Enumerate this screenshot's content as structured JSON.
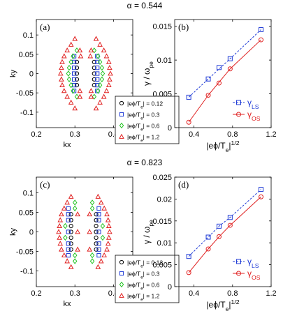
{
  "chart_data": [
    {
      "type": "scatter",
      "panel": "(a)",
      "row_title": "α = 0.544",
      "xlabel": "kx",
      "ylabel": "ky",
      "xlim": [
        0.2,
        0.45
      ],
      "ylim": [
        -0.14,
        0.14
      ],
      "xticks": [
        "0.2",
        "0.3",
        "0.4"
      ],
      "yticks": [
        "0.1",
        "0.05",
        "0",
        "-0.05",
        "-0.1"
      ],
      "grid": false,
      "legend_position": "bottom-right",
      "series": [
        {
          "name": "|eϕ/T_e| = 0.12",
          "marker": "circle",
          "color": "#000000",
          "points": [
            [
              0.305,
              0.03
            ],
            [
              0.305,
              0.015
            ],
            [
              0.305,
              0
            ],
            [
              0.305,
              -0.015
            ],
            [
              0.305,
              -0.03
            ],
            [
              0.35,
              0.03
            ],
            [
              0.35,
              0.015
            ],
            [
              0.35,
              0
            ],
            [
              0.35,
              -0.015
            ],
            [
              0.35,
              -0.03
            ]
          ]
        },
        {
          "name": "|eϕ/T_e| = 0.3",
          "marker": "square",
          "color": "#1f3bd6",
          "points": [
            [
              0.298,
              0.045
            ],
            [
              0.298,
              0.03
            ],
            [
              0.298,
              0.015
            ],
            [
              0.298,
              0
            ],
            [
              0.298,
              -0.015
            ],
            [
              0.298,
              -0.03
            ],
            [
              0.298,
              -0.045
            ],
            [
              0.358,
              0.045
            ],
            [
              0.358,
              0.03
            ],
            [
              0.358,
              0.015
            ],
            [
              0.358,
              0
            ],
            [
              0.358,
              -0.015
            ],
            [
              0.358,
              -0.03
            ],
            [
              0.358,
              -0.045
            ]
          ]
        },
        {
          "name": "|eϕ/T_e| = 0.6",
          "marker": "diamond",
          "color": "#22c422",
          "points": [
            [
              0.305,
              0.06
            ],
            [
              0.295,
              0.045
            ],
            [
              0.29,
              0.03
            ],
            [
              0.285,
              0.015
            ],
            [
              0.283,
              0
            ],
            [
              0.285,
              -0.015
            ],
            [
              0.29,
              -0.03
            ],
            [
              0.295,
              -0.045
            ],
            [
              0.305,
              -0.06
            ],
            [
              0.35,
              0.06
            ],
            [
              0.36,
              0.045
            ],
            [
              0.365,
              0.03
            ],
            [
              0.37,
              0.015
            ],
            [
              0.372,
              0
            ],
            [
              0.37,
              -0.015
            ],
            [
              0.365,
              -0.03
            ],
            [
              0.36,
              -0.045
            ],
            [
              0.35,
              -0.06
            ]
          ]
        },
        {
          "name": "|eϕ/T_e| = 1.2",
          "marker": "triangle",
          "color": "#e02020",
          "points": [
            [
              0.3,
              0.09
            ],
            [
              0.29,
              0.075
            ],
            [
              0.28,
              0.06
            ],
            [
              0.272,
              0.045
            ],
            [
              0.267,
              0.03
            ],
            [
              0.265,
              0.015
            ],
            [
              0.263,
              0
            ],
            [
              0.265,
              -0.015
            ],
            [
              0.267,
              -0.03
            ],
            [
              0.272,
              -0.045
            ],
            [
              0.28,
              -0.06
            ],
            [
              0.29,
              -0.075
            ],
            [
              0.3,
              -0.09
            ],
            [
              0.313,
              0.06
            ],
            [
              0.315,
              0.045
            ],
            [
              0.313,
              -0.045
            ],
            [
              0.313,
              -0.06
            ],
            [
              0.355,
              0.09
            ],
            [
              0.365,
              0.075
            ],
            [
              0.375,
              0.06
            ],
            [
              0.382,
              0.045
            ],
            [
              0.388,
              0.03
            ],
            [
              0.39,
              0.015
            ],
            [
              0.392,
              0
            ],
            [
              0.39,
              -0.015
            ],
            [
              0.388,
              -0.03
            ],
            [
              0.382,
              -0.045
            ],
            [
              0.375,
              -0.06
            ],
            [
              0.365,
              -0.075
            ],
            [
              0.355,
              -0.09
            ],
            [
              0.342,
              0.06
            ],
            [
              0.34,
              0.045
            ],
            [
              0.342,
              -0.045
            ],
            [
              0.342,
              -0.06
            ]
          ]
        }
      ]
    },
    {
      "type": "line",
      "panel": "(b)",
      "xlabel": "|eϕ/T_e|^1/2",
      "ylabel": "γ / ω_pe",
      "xlim": [
        0.2,
        1.2
      ],
      "ylim": [
        0,
        0.016
      ],
      "xticks": [
        "0.4",
        "0.8",
        "1.2"
      ],
      "yticks": [
        "0",
        "0.005",
        "0.01",
        "0.015"
      ],
      "grid": false,
      "legend_position": "bottom-right",
      "series": [
        {
          "name": "γ_LS",
          "marker": "square",
          "style": "dashed",
          "color": "#1f3bd6",
          "x": [
            0.346,
            0.548,
            0.775,
            1.095
          ],
          "y": [
            0.0045,
            0.0072,
            0.0102,
            0.0145
          ]
        },
        {
          "name": "γ_OS",
          "marker": "circle",
          "style": "solid",
          "color": "#e02020",
          "x": [
            0.346,
            0.548,
            0.775,
            1.095
          ],
          "y": [
            0.0008,
            0.0048,
            0.0087,
            0.013
          ]
        }
      ],
      "extra_points": [
        {
          "series": 0,
          "x": 0.66,
          "y": 0.0089
        },
        {
          "series": 1,
          "x": 0.66,
          "y": 0.0066
        }
      ]
    },
    {
      "type": "scatter",
      "panel": "(c)",
      "row_title": "α = 0.823",
      "xlabel": "kx",
      "ylabel": "ky",
      "xlim": [
        0.2,
        0.45
      ],
      "ylim": [
        -0.14,
        0.14
      ],
      "xticks": [
        "0.2",
        "0.3",
        "0.4"
      ],
      "yticks": [
        "0.1",
        "0.05",
        "0",
        "-0.05",
        "-0.1"
      ],
      "grid": false,
      "legend_position": "bottom-right",
      "series": [
        {
          "name": "|eϕ/T_e| = 0.12",
          "marker": "circle",
          "color": "#000000",
          "points": [
            [
              0.29,
              0.045
            ],
            [
              0.29,
              0.03
            ],
            [
              0.29,
              0.015
            ],
            [
              0.29,
              0
            ],
            [
              0.29,
              -0.015
            ],
            [
              0.29,
              -0.03
            ],
            [
              0.29,
              -0.045
            ],
            [
              0.355,
              0.045
            ],
            [
              0.355,
              0.03
            ],
            [
              0.355,
              0.015
            ],
            [
              0.355,
              0
            ],
            [
              0.355,
              -0.015
            ],
            [
              0.355,
              -0.03
            ],
            [
              0.355,
              -0.045
            ]
          ]
        },
        {
          "name": "|eϕ/T_e| = 0.3",
          "marker": "square",
          "color": "#1f3bd6",
          "points": [
            [
              0.283,
              0.06
            ],
            [
              0.283,
              0.045
            ],
            [
              0.283,
              0.03
            ],
            [
              0.283,
              0
            ],
            [
              0.283,
              -0.03
            ],
            [
              0.283,
              -0.045
            ],
            [
              0.283,
              -0.06
            ],
            [
              0.362,
              0.06
            ],
            [
              0.362,
              0.045
            ],
            [
              0.362,
              0.03
            ],
            [
              0.362,
              0
            ],
            [
              0.362,
              -0.03
            ],
            [
              0.362,
              -0.045
            ],
            [
              0.362,
              -0.06
            ]
          ]
        },
        {
          "name": "|eϕ/T_e| = 0.6",
          "marker": "diamond",
          "color": "#22c422",
          "points": [
            [
              0.3,
              0.075
            ],
            [
              0.3,
              0.06
            ],
            [
              0.3,
              -0.06
            ],
            [
              0.3,
              -0.075
            ],
            [
              0.345,
              0.075
            ],
            [
              0.345,
              0.06
            ],
            [
              0.345,
              -0.06
            ],
            [
              0.345,
              -0.075
            ],
            [
              0.275,
              0.015
            ],
            [
              0.275,
              -0.015
            ],
            [
              0.372,
              0.015
            ],
            [
              0.372,
              -0.015
            ]
          ]
        },
        {
          "name": "|eϕ/T_e| = 1.2",
          "marker": "triangle",
          "color": "#e02020",
          "points": [
            [
              0.29,
              0.09
            ],
            [
              0.28,
              0.075
            ],
            [
              0.272,
              0.06
            ],
            [
              0.265,
              0.045
            ],
            [
              0.262,
              0.03
            ],
            [
              0.26,
              0.015
            ],
            [
              0.258,
              0
            ],
            [
              0.26,
              -0.015
            ],
            [
              0.262,
              -0.03
            ],
            [
              0.265,
              -0.045
            ],
            [
              0.272,
              -0.06
            ],
            [
              0.28,
              -0.075
            ],
            [
              0.29,
              -0.09
            ],
            [
              0.307,
              0.045
            ],
            [
              0.307,
              0
            ],
            [
              0.307,
              -0.045
            ],
            [
              0.36,
              0.09
            ],
            [
              0.368,
              0.075
            ],
            [
              0.376,
              0.06
            ],
            [
              0.383,
              0.045
            ],
            [
              0.386,
              0.03
            ],
            [
              0.388,
              0.015
            ],
            [
              0.39,
              0
            ],
            [
              0.388,
              -0.015
            ],
            [
              0.386,
              -0.03
            ],
            [
              0.383,
              -0.045
            ],
            [
              0.376,
              -0.06
            ],
            [
              0.368,
              -0.075
            ],
            [
              0.36,
              -0.09
            ],
            [
              0.338,
              0.045
            ],
            [
              0.338,
              0
            ],
            [
              0.338,
              -0.045
            ]
          ]
        }
      ]
    },
    {
      "type": "line",
      "panel": "(d)",
      "xlabel": "|eϕ/T_e|^1/2",
      "ylabel": "γ / ω_pe",
      "xlim": [
        0.2,
        1.2
      ],
      "ylim": [
        0,
        0.025
      ],
      "xticks": [
        "0.4",
        "0.8",
        "1.2"
      ],
      "yticks": [
        "0",
        "0.005",
        "0.01",
        "0.015",
        "0.02",
        "0.025"
      ],
      "grid": false,
      "legend_position": "bottom-right",
      "series": [
        {
          "name": "γ_LS",
          "marker": "square",
          "style": "dashed",
          "color": "#1f3bd6",
          "x": [
            0.346,
            0.548,
            0.66,
            0.775,
            1.095
          ],
          "y": [
            0.0069,
            0.0113,
            0.0138,
            0.0158,
            0.0222
          ]
        },
        {
          "name": "γ_OS",
          "marker": "circle",
          "style": "solid",
          "color": "#e02020",
          "x": [
            0.346,
            0.548,
            0.66,
            0.775,
            1.095
          ],
          "y": [
            0.0032,
            0.0086,
            0.0114,
            0.014,
            0.0205
          ]
        }
      ]
    }
  ]
}
